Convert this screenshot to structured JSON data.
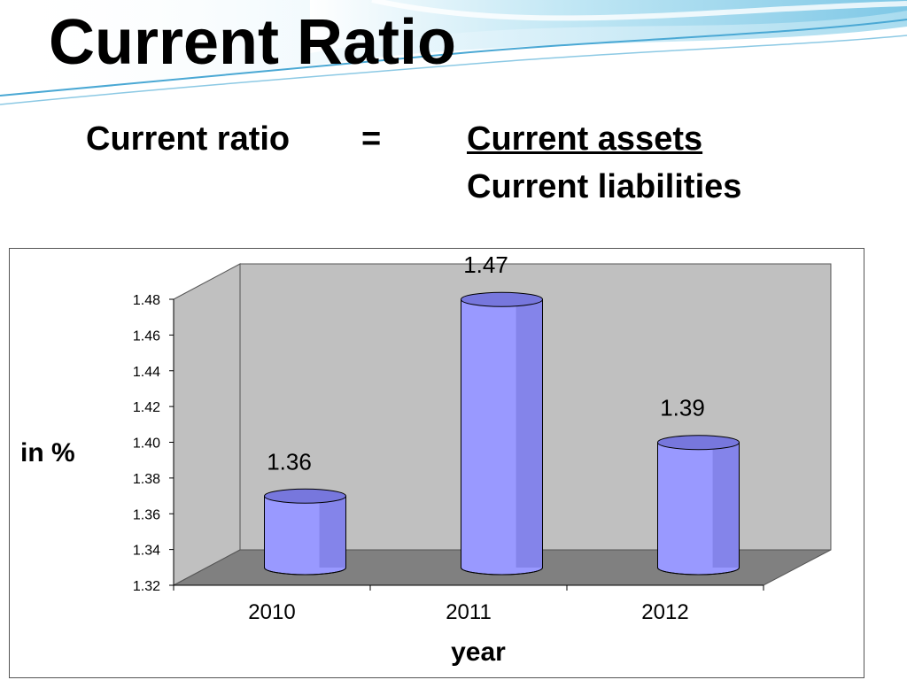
{
  "slide": {
    "title": "Current Ratio",
    "formula_lhs": "Current ratio",
    "formula_eq": "=",
    "formula_numerator": "Current assets",
    "formula_denominator": "Current liabilities"
  },
  "colors": {
    "bar_front": "#9999ff",
    "bar_dark": "#6a6ad0",
    "bar_top": "#7777dd",
    "wall": "#c0c0c0",
    "floor": "#808080",
    "wave": "#7fc8e6"
  },
  "chart_data": {
    "type": "bar",
    "style": "3d-cylinder",
    "categories": [
      "2010",
      "2011",
      "2012"
    ],
    "values": [
      1.36,
      1.47,
      1.39
    ],
    "data_labels": [
      "1.36",
      "1.47",
      "1.39"
    ],
    "ylabel": "in %",
    "xlabel": "year",
    "ylim": [
      1.32,
      1.48
    ],
    "yticks": [
      "1.32",
      "1.34",
      "1.36",
      "1.38",
      "1.40",
      "1.42",
      "1.44",
      "1.46",
      "1.48"
    ],
    "grid": false,
    "legend": false
  }
}
